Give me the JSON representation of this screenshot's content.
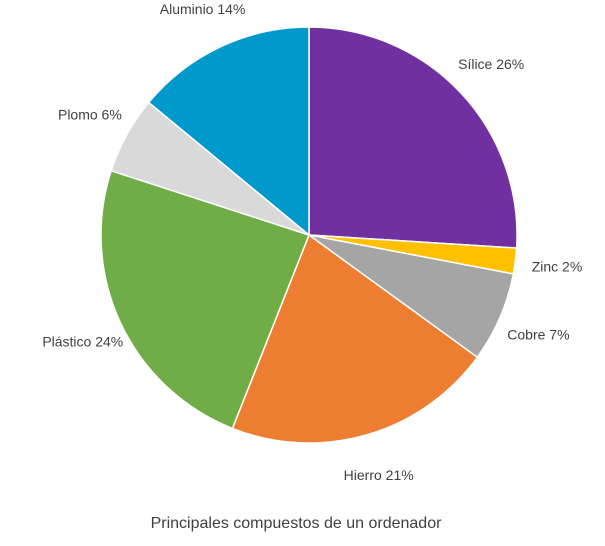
{
  "chart_data": {
    "type": "pie",
    "title": "Principales compuestos de un ordenador",
    "slices": [
      {
        "label": "Sílice",
        "value": 26,
        "value_text": "26%",
        "color": "#7030A0"
      },
      {
        "label": "Zinc",
        "value": 2,
        "value_text": "2%",
        "color": "#FFC000"
      },
      {
        "label": "Cobre",
        "value": 7,
        "value_text": "7%",
        "color": "#A5A5A5"
      },
      {
        "label": "Hierro",
        "value": 21,
        "value_text": "21%",
        "color": "#ED7D31"
      },
      {
        "label": "Plástico",
        "value": 24,
        "value_text": "24%",
        "color": "#70AD47"
      },
      {
        "label": "Plomo",
        "value": 6,
        "value_text": "6%",
        "color": "#D9D9D9"
      },
      {
        "label": "Aluminio",
        "value": 14,
        "value_text": "14%",
        "color": "#0099CC"
      }
    ],
    "start": "12 o'clock",
    "direction": "clockwise",
    "legend": "none",
    "data_labels": "outside"
  }
}
